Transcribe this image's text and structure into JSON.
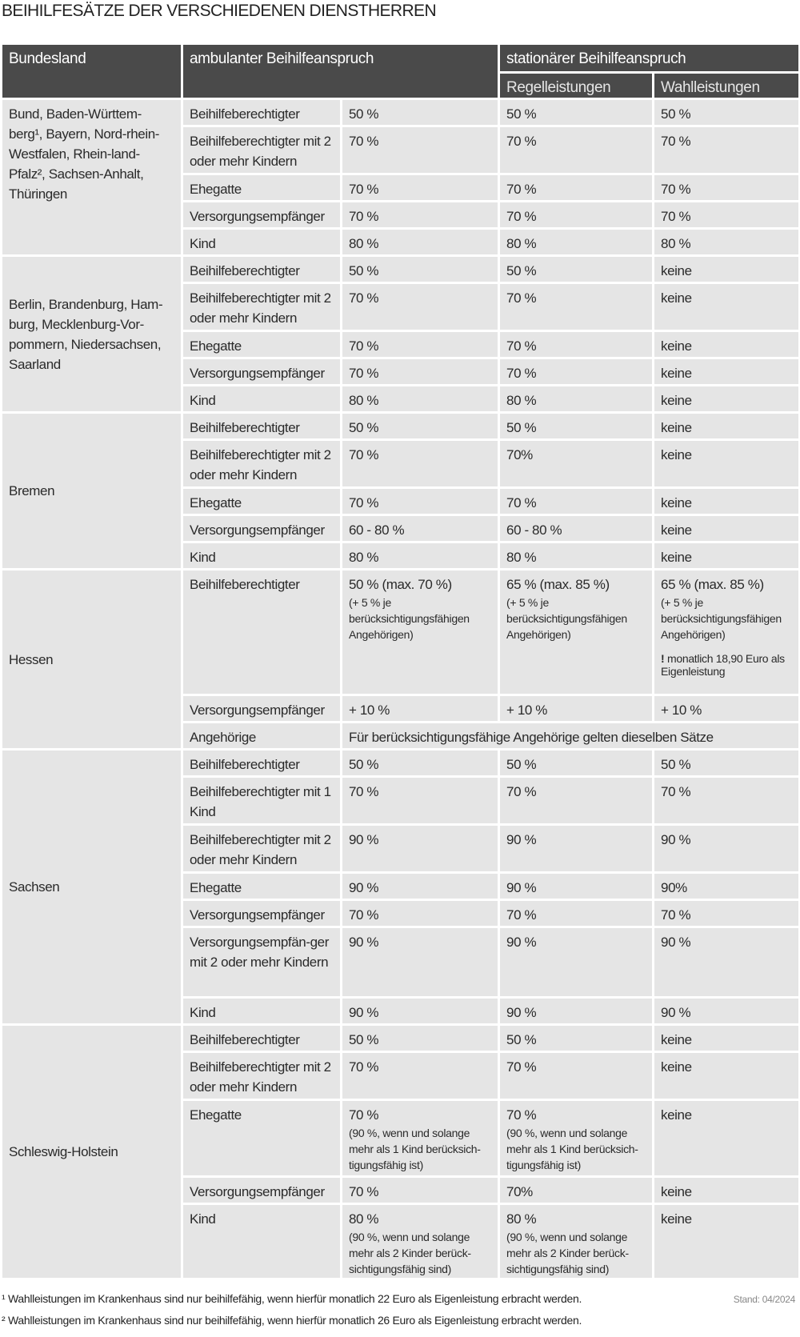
{
  "title": "BEIHILFESÄTZE DER VERSCHIEDENEN DIENSTHERREN",
  "header": {
    "col_state": "Bundesland",
    "col_amb": "ambulanter Beihilfeanspruch",
    "col_stat": "stationärer Beihilfeanspruch",
    "col_regel": "Regelleistungen",
    "col_wahl": "Wahlleistungen"
  },
  "groups": [
    {
      "state": "Bund, Baden-Württem-berg¹, Bayern, Nord-rhein-Westfalen, Rhein-land-Pfalz², Sachsen-Anhalt, Thüringen",
      "rows": [
        {
          "label": "Beihilfeberechtigter",
          "amb": "50 %",
          "reg": "50 %",
          "wahl": "50 %"
        },
        {
          "label": "Beihilfeberechtigter mit 2 oder mehr Kindern",
          "amb": "70 %",
          "reg": "70 %",
          "wahl": "70 %"
        },
        {
          "label": "Ehegatte",
          "amb": "70 %",
          "reg": "70 %",
          "wahl": "70 %"
        },
        {
          "label": "Versorgungsempfänger",
          "amb": "70 %",
          "reg": "70 %",
          "wahl": "70 %"
        },
        {
          "label": "Kind",
          "amb": "80 %",
          "reg": "80 %",
          "wahl": "80 %"
        }
      ]
    },
    {
      "state": "Berlin, Brandenburg, Ham-burg, Mecklenburg-Vor-pommern, Niedersachsen, Saarland",
      "rows": [
        {
          "label": "Beihilfeberechtigter",
          "amb": "50 %",
          "reg": "50 %",
          "wahl": "keine"
        },
        {
          "label": "Beihilfeberechtigter mit 2 oder mehr Kindern",
          "amb": "70 %",
          "reg": "70 %",
          "wahl": "keine"
        },
        {
          "label": "Ehegatte",
          "amb": "70 %",
          "reg": "70 %",
          "wahl": "keine"
        },
        {
          "label": "Versorgungsempfänger",
          "amb": "70 %",
          "reg": "70 %",
          "wahl": "keine"
        },
        {
          "label": "Kind",
          "amb": "80 %",
          "reg": "80 %",
          "wahl": "keine"
        }
      ]
    },
    {
      "state": "Bremen",
      "rows": [
        {
          "label": "Beihilfeberechtigter",
          "amb": "50 %",
          "reg": "50 %",
          "wahl": "keine"
        },
        {
          "label": "Beihilfeberechtigter mit 2 oder mehr Kindern",
          "amb": "70 %",
          "reg": "70%",
          "wahl": "keine"
        },
        {
          "label": "Ehegatte",
          "amb": "70 %",
          "reg": "70 %",
          "wahl": "keine"
        },
        {
          "label": "Versorgungsempfänger",
          "amb": "60 - 80 %",
          "reg": "60 - 80 %",
          "wahl": "keine"
        },
        {
          "label": "Kind",
          "amb": "80 %",
          "reg": "80 %",
          "wahl": "keine"
        }
      ]
    },
    {
      "state": "Hessen",
      "rows": [
        {
          "label": "Beihilfeberechtigter",
          "amb": "50 % (max. 70 %)",
          "amb_note": "(+ 5 % je berücksichtigungsfähigen Angehörigen)",
          "reg": "65 % (max. 85 %)",
          "reg_note": "(+ 5 % je berücksichtigungsfähigen Angehörigen)",
          "wahl": "65 % (max. 85 %)",
          "wahl_note": "(+ 5 % je berücksichtigungsfähigen Angehörigen)",
          "wahl_warn_mark": "!",
          "wahl_warn": "monatlich 18,90 Euro als Eigenleistung"
        },
        {
          "label": "Versorgungsempfänger",
          "amb": "+ 10 %",
          "reg": "+ 10 %",
          "wahl": "+ 10 %"
        },
        {
          "label": "Angehörige",
          "merged": "Für berücksichtigungsfähige Angehörige gelten dieselben Sätze"
        }
      ]
    },
    {
      "state": "Sachsen",
      "rows": [
        {
          "label": "Beihilfeberechtigter",
          "amb": "50 %",
          "reg": "50 %",
          "wahl": "50 %"
        },
        {
          "label": "Beihilfeberechtigter mit 1 Kind",
          "amb": "70 %",
          "reg": "70 %",
          "wahl": "70 %"
        },
        {
          "label": "Beihilfeberechtigter mit 2 oder mehr Kindern",
          "amb": "90 %",
          "reg": "90 %",
          "wahl": "90 %"
        },
        {
          "label": "Ehegatte",
          "amb": "90 %",
          "reg": "90 %",
          "wahl": "90%"
        },
        {
          "label": "Versorgungsempfänger",
          "amb": "70 %",
          "reg": "70 %",
          "wahl": "70 %"
        },
        {
          "label": "Versorgungsempfän-ger mit 2 oder mehr Kindern",
          "amb": "90 %",
          "reg": "90 %",
          "wahl": "90 %"
        },
        {
          "label": "Kind",
          "amb": "90 %",
          "reg": "90 %",
          "wahl": "90 %"
        }
      ]
    },
    {
      "state": "Schleswig-Holstein",
      "rows": [
        {
          "label": "Beihilfeberechtigter",
          "amb": "50 %",
          "reg": "50 %",
          "wahl": "keine"
        },
        {
          "label": "Beihilfeberechtigter mit 2 oder mehr Kindern",
          "amb": "70 %",
          "reg": "70 %",
          "wahl": "keine"
        },
        {
          "label": "Ehegatte",
          "amb": "70 %",
          "amb_note": "(90 %, wenn und solange mehr als 1 Kind berücksich-tigungsfähig ist)",
          "reg": "70 %",
          "reg_note": "(90 %, wenn und solange mehr als 1 Kind berücksich-tigungsfähig ist)",
          "wahl": "keine"
        },
        {
          "label": "Versorgungsempfänger",
          "amb": "70 %",
          "reg": "70%",
          "wahl": "keine"
        },
        {
          "label": "Kind",
          "amb": "80 %",
          "amb_note": "(90 %, wenn und solange mehr als 2 Kinder berück-sichtigungsfähig sind)",
          "reg": "80 %",
          "reg_note": "(90 %, wenn und solange mehr als 2 Kinder berück-sichtigungsfähig sind)",
          "wahl": "keine"
        }
      ]
    }
  ],
  "footnotes": [
    "¹ Wahlleistungen im Krankenhaus sind nur beihilfefähig, wenn hierfür monatlich 22 Euro als Eigenleistung erbracht werden.",
    "² Wahlleistungen im Krankenhaus sind nur beihilfefähig, wenn hierfür monatlich 26 Euro als Eigenleistung erbracht werden."
  ],
  "stand": "Stand: 04/2024",
  "colors": {
    "header_bg": "#4a4a4a",
    "cell_bg": "#e5e5e5"
  }
}
